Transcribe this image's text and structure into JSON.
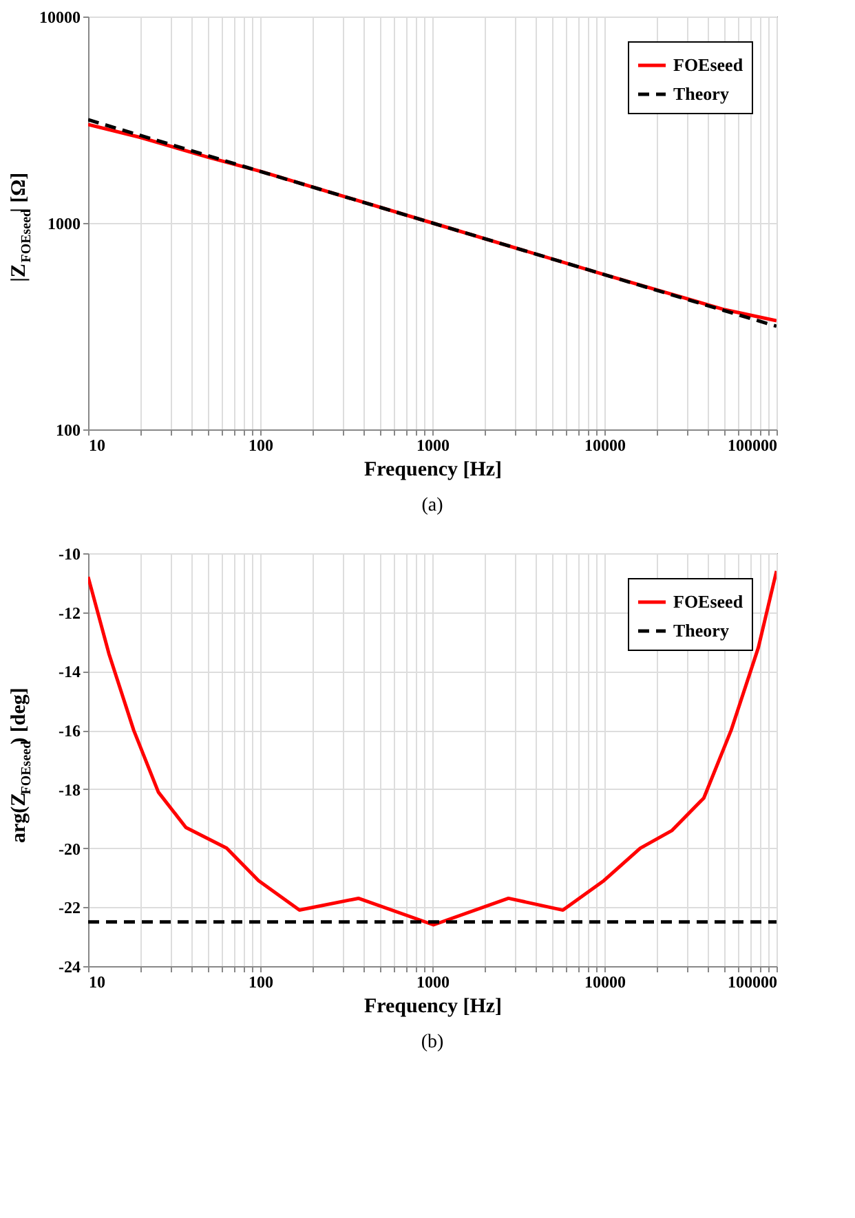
{
  "chart_data": [
    {
      "type": "line",
      "xlabel": "Frequency [Hz]",
      "ylabel": "|Z$_{FOEseed}$| [Ω]",
      "annotations": [
        "(a)"
      ],
      "log": "xy",
      "grid": true,
      "legend": "top right",
      "xlim": [
        10,
        100000
      ],
      "ylim": [
        100,
        10000
      ],
      "xticks": [
        10,
        {
          "value": 20,
          "label": null
        },
        {
          "value": 30,
          "label": null
        },
        {
          "value": 40,
          "label": null
        },
        {
          "value": 50,
          "label": null
        },
        {
          "value": 60,
          "label": null
        },
        {
          "value": 70,
          "label": null
        },
        {
          "value": 80,
          "label": null
        },
        {
          "value": 90,
          "label": null
        },
        100,
        {
          "value": 200,
          "label": null
        },
        {
          "value": 300,
          "label": null
        },
        {
          "value": 400,
          "label": null
        },
        {
          "value": 500,
          "label": null
        },
        {
          "value": 600,
          "label": null
        },
        {
          "value": 700,
          "label": null
        },
        {
          "value": 800,
          "label": null
        },
        {
          "value": 900,
          "label": null
        },
        1000,
        {
          "value": 2000,
          "label": null
        },
        {
          "value": 3000,
          "label": null
        },
        {
          "value": 4000,
          "label": null
        },
        {
          "value": 5000,
          "label": null
        },
        {
          "value": 6000,
          "label": null
        },
        {
          "value": 7000,
          "label": null
        },
        {
          "value": 8000,
          "label": null
        },
        {
          "value": 9000,
          "label": null
        },
        10000,
        {
          "value": 20000,
          "label": null
        },
        {
          "value": 30000,
          "label": null
        },
        {
          "value": 40000,
          "label": null
        },
        {
          "value": 50000,
          "label": null
        },
        {
          "value": 60000,
          "label": null
        },
        {
          "value": 70000,
          "label": null
        },
        {
          "value": 80000,
          "label": null
        },
        {
          "value": 90000,
          "label": null
        },
        100000
      ],
      "yticks": [
        100,
        1000,
        10000
      ],
      "series": [
        {
          "name": "FOEseed",
          "color": "#ff0000",
          "line_style": "solid",
          "x": [
            10,
            20,
            50,
            100,
            1000,
            10000,
            50000,
            100000
          ],
          "values": [
            3000,
            2600,
            2080,
            1780,
            1000,
            562,
            380,
            336
          ]
        },
        {
          "name": "Theory",
          "color": "#000000",
          "line_style": "dashed",
          "x": [
            10,
            100,
            1000,
            10000,
            100000
          ],
          "values": [
            3162,
            1778,
            1000,
            562,
            316
          ]
        }
      ]
    },
    {
      "type": "line",
      "xlabel": "Frequency [Hz]",
      "ylabel": "arg(Z$_{FOEseed}$) [deg]",
      "annotations": [
        "(b)"
      ],
      "log": "x",
      "grid": true,
      "legend": "top right",
      "xlim": [
        10,
        100000
      ],
      "ylim": [
        -24,
        -10
      ],
      "xticks": [
        10,
        {
          "value": 20,
          "label": null
        },
        {
          "value": 30,
          "label": null
        },
        {
          "value": 40,
          "label": null
        },
        {
          "value": 50,
          "label": null
        },
        {
          "value": 60,
          "label": null
        },
        {
          "value": 70,
          "label": null
        },
        {
          "value": 80,
          "label": null
        },
        {
          "value": 90,
          "label": null
        },
        100,
        {
          "value": 200,
          "label": null
        },
        {
          "value": 300,
          "label": null
        },
        {
          "value": 400,
          "label": null
        },
        {
          "value": 500,
          "label": null
        },
        {
          "value": 600,
          "label": null
        },
        {
          "value": 700,
          "label": null
        },
        {
          "value": 800,
          "label": null
        },
        {
          "value": 900,
          "label": null
        },
        1000,
        {
          "value": 2000,
          "label": null
        },
        {
          "value": 3000,
          "label": null
        },
        {
          "value": 4000,
          "label": null
        },
        {
          "value": 5000,
          "label": null
        },
        {
          "value": 6000,
          "label": null
        },
        {
          "value": 7000,
          "label": null
        },
        {
          "value": 8000,
          "label": null
        },
        {
          "value": 9000,
          "label": null
        },
        10000,
        {
          "value": 20000,
          "label": null
        },
        {
          "value": 30000,
          "label": null
        },
        {
          "value": 40000,
          "label": null
        },
        {
          "value": 50000,
          "label": null
        },
        {
          "value": 60000,
          "label": null
        },
        {
          "value": 70000,
          "label": null
        },
        {
          "value": 80000,
          "label": null
        },
        {
          "value": 90000,
          "label": null
        },
        100000
      ],
      "yticks": [
        -24,
        -22,
        -20,
        -18,
        -16,
        -14,
        -12,
        -10
      ],
      "series": [
        {
          "name": "FOEseed",
          "color": "#ff0000",
          "line_style": "solid",
          "x": [
            10,
            13.2,
            18.4,
            25.6,
            37,
            63.8,
            97.8,
            169,
            372,
            1016,
            2770,
            5740,
            9930,
            16150,
            24700,
            37800,
            54500,
            78400,
            100000
          ],
          "values": [
            -10.8,
            -13.4,
            -16.0,
            -18.1,
            -19.3,
            -20.0,
            -21.1,
            -22.1,
            -21.7,
            -22.6,
            -21.7,
            -22.1,
            -21.1,
            -20.0,
            -19.4,
            -18.3,
            -16.0,
            -13.2,
            -10.6
          ]
        },
        {
          "name": "Theory",
          "color": "#000000",
          "line_style": "dashed",
          "x": [
            10,
            100000
          ],
          "values": [
            -22.5,
            -22.5
          ]
        }
      ]
    }
  ]
}
